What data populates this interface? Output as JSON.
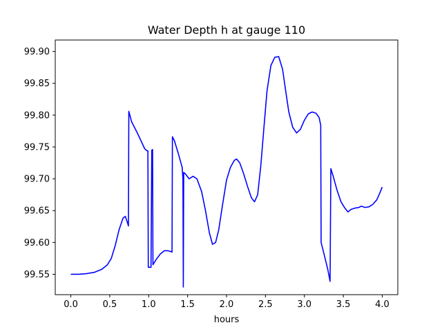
{
  "chart_data": {
    "type": "line",
    "title": "Water Depth h at gauge 110",
    "xlabel": "hours",
    "ylabel": "",
    "xlim": [
      -0.2,
      4.2
    ],
    "ylim": [
      99.518,
      99.918
    ],
    "x_ticks": [
      0.0,
      0.5,
      1.0,
      1.5,
      2.0,
      2.5,
      3.0,
      3.5,
      4.0
    ],
    "x_tick_labels": [
      "0.0",
      "0.5",
      "1.0",
      "1.5",
      "2.0",
      "2.5",
      "3.0",
      "3.5",
      "4.0"
    ],
    "y_ticks": [
      99.55,
      99.6,
      99.65,
      99.7,
      99.75,
      99.8,
      99.85,
      99.9
    ],
    "y_tick_labels": [
      "99.55",
      "99.60",
      "99.65",
      "99.70",
      "99.75",
      "99.80",
      "99.85",
      "99.90"
    ],
    "grid": false,
    "legend": "none",
    "series": [
      {
        "color": "#0000ff",
        "points": [
          [
            0.0,
            99.55
          ],
          [
            0.1,
            99.55
          ],
          [
            0.2,
            99.551
          ],
          [
            0.3,
            99.553
          ],
          [
            0.4,
            99.558
          ],
          [
            0.47,
            99.565
          ],
          [
            0.52,
            99.575
          ],
          [
            0.57,
            99.595
          ],
          [
            0.62,
            99.62
          ],
          [
            0.67,
            99.638
          ],
          [
            0.7,
            99.641
          ],
          [
            0.73,
            99.63
          ],
          [
            0.74,
            99.626
          ],
          [
            0.745,
            99.806
          ],
          [
            0.78,
            99.79
          ],
          [
            0.85,
            99.773
          ],
          [
            0.9,
            99.76
          ],
          [
            0.95,
            99.747
          ],
          [
            0.98,
            99.744
          ],
          [
            0.99,
            99.744
          ],
          [
            0.995,
            99.561
          ],
          [
            1.03,
            99.561
          ],
          [
            1.04,
            99.745
          ],
          [
            1.05,
            99.746
          ],
          [
            1.055,
            99.565
          ],
          [
            1.1,
            99.574
          ],
          [
            1.15,
            99.582
          ],
          [
            1.2,
            99.587
          ],
          [
            1.25,
            99.587
          ],
          [
            1.3,
            99.585
          ],
          [
            1.305,
            99.766
          ],
          [
            1.33,
            99.76
          ],
          [
            1.38,
            99.74
          ],
          [
            1.43,
            99.718
          ],
          [
            1.44,
            99.7
          ],
          [
            1.445,
            99.53
          ],
          [
            1.45,
            99.71
          ],
          [
            1.47,
            99.708
          ],
          [
            1.52,
            99.7
          ],
          [
            1.57,
            99.704
          ],
          [
            1.62,
            99.7
          ],
          [
            1.68,
            99.68
          ],
          [
            1.73,
            99.65
          ],
          [
            1.78,
            99.615
          ],
          [
            1.82,
            99.597
          ],
          [
            1.86,
            99.6
          ],
          [
            1.9,
            99.62
          ],
          [
            1.95,
            99.66
          ],
          [
            2.0,
            99.698
          ],
          [
            2.05,
            99.718
          ],
          [
            2.1,
            99.729
          ],
          [
            2.13,
            99.731
          ],
          [
            2.17,
            99.725
          ],
          [
            2.22,
            99.708
          ],
          [
            2.27,
            99.688
          ],
          [
            2.32,
            99.67
          ],
          [
            2.36,
            99.664
          ],
          [
            2.4,
            99.675
          ],
          [
            2.44,
            99.72
          ],
          [
            2.48,
            99.78
          ],
          [
            2.52,
            99.838
          ],
          [
            2.57,
            99.878
          ],
          [
            2.62,
            99.891
          ],
          [
            2.67,
            99.892
          ],
          [
            2.72,
            99.872
          ],
          [
            2.76,
            99.838
          ],
          [
            2.8,
            99.805
          ],
          [
            2.85,
            99.781
          ],
          [
            2.9,
            99.772
          ],
          [
            2.95,
            99.778
          ],
          [
            3.0,
            99.792
          ],
          [
            3.05,
            99.802
          ],
          [
            3.1,
            99.805
          ],
          [
            3.15,
            99.803
          ],
          [
            3.19,
            99.796
          ],
          [
            3.21,
            99.784
          ],
          [
            3.215,
            99.6
          ],
          [
            3.25,
            99.583
          ],
          [
            3.3,
            99.558
          ],
          [
            3.33,
            99.539
          ],
          [
            3.34,
            99.716
          ],
          [
            3.37,
            99.704
          ],
          [
            3.42,
            99.682
          ],
          [
            3.47,
            99.664
          ],
          [
            3.52,
            99.654
          ],
          [
            3.56,
            99.648
          ],
          [
            3.6,
            99.652
          ],
          [
            3.65,
            99.654
          ],
          [
            3.7,
            99.655
          ],
          [
            3.73,
            99.657
          ],
          [
            3.78,
            99.655
          ],
          [
            3.83,
            99.656
          ],
          [
            3.88,
            99.66
          ],
          [
            3.93,
            99.667
          ],
          [
            3.97,
            99.678
          ],
          [
            4.0,
            99.687
          ]
        ]
      }
    ]
  }
}
